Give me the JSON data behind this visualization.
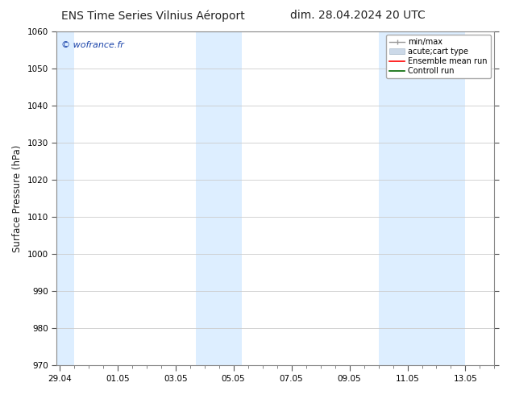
{
  "title_left": "ENS Time Series Vilnius Aéroport",
  "title_right": "dim. 28.04.2024 20 UTC",
  "ylabel": "Surface Pressure (hPa)",
  "ylim": [
    970,
    1060
  ],
  "yticks": [
    970,
    980,
    990,
    1000,
    1010,
    1020,
    1030,
    1040,
    1050,
    1060
  ],
  "xtick_labels": [
    "29.04",
    "01.05",
    "03.05",
    "05.05",
    "07.05",
    "09.05",
    "11.05",
    "13.05"
  ],
  "xtick_positions": [
    0,
    2,
    4,
    6,
    8,
    10,
    12,
    14
  ],
  "xlim": [
    -0.1,
    15.0
  ],
  "shaded_bands": [
    {
      "x_start": -0.1,
      "x_end": 0.5
    },
    {
      "x_start": 4.7,
      "x_end": 6.3
    },
    {
      "x_start": 11.0,
      "x_end": 14.0
    }
  ],
  "shade_color": "#ddeeff",
  "watermark_text": "© wofrance.fr",
  "watermark_color": "#1a44aa",
  "bg_color": "#ffffff",
  "grid_color": "#cccccc",
  "title_fontsize": 10,
  "label_fontsize": 8.5,
  "tick_fontsize": 7.5,
  "legend_fontsize": 7
}
